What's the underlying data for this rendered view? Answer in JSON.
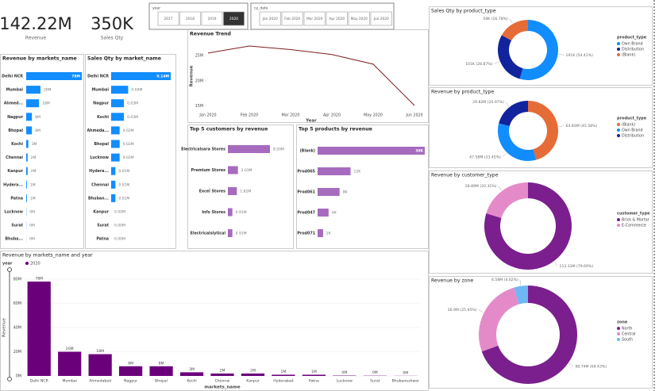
{
  "cards": [
    {
      "value": "142.22M",
      "label": "Revenue"
    },
    {
      "value": "350K",
      "label": "Sales Qty"
    }
  ],
  "slicers": [
    {
      "title": "year",
      "options": [
        "2017",
        "2018",
        "2019",
        "2020"
      ],
      "selected": 3
    },
    {
      "title": "cy_date",
      "options": [
        "Jan 2020",
        "Feb 2020",
        "Mar 2020",
        "Apr 2020",
        "May 2020",
        "Jun 2020"
      ],
      "selected": null
    }
  ],
  "chart_data": [
    {
      "type": "hbar",
      "title": "Revenue by markets_name",
      "color": "#118DFF",
      "categories": [
        "Delhi NCR",
        "Mumbai",
        "Ahmed...",
        "Nagpur",
        "Bhopal",
        "Kochi",
        "Chennai",
        "Kanpur",
        "Hydera...",
        "Patna",
        "Lucknow",
        "Surat",
        "Bhuba..."
      ],
      "values": [
        78,
        20,
        18,
        8,
        8,
        3,
        2,
        2,
        1,
        1,
        0.3,
        0.2,
        0.1
      ],
      "value_labels": [
        "78M",
        "20M",
        "18M",
        "8M",
        "8M",
        "3M",
        "2M",
        "2M",
        "1M",
        "1M",
        "0M",
        "0M",
        "0M"
      ]
    },
    {
      "type": "hbar",
      "title": "Sales Qty by market_name",
      "color": "#118DFF",
      "categories": [
        "Delhi NCR",
        "Mumbai",
        "Nagpur",
        "Kochi",
        "Ahmeda...",
        "Bhopal",
        "Lucknow",
        "Hydera...",
        "Chennai",
        "Bhuban...",
        "Kanpur",
        "Surat",
        "Patna"
      ],
      "values": [
        0.14,
        0.04,
        0.03,
        0.03,
        0.02,
        0.02,
        0.02,
        0.01,
        0.01,
        0.01,
        0.0,
        0.0,
        0.0
      ],
      "value_labels": [
        "0.14M",
        "0.04M",
        "0.03M",
        "0.03M",
        "0.02M",
        "0.02M",
        "0.02M",
        "0.01M",
        "0.01M",
        "0.01M",
        "0.00M",
        "0.00M",
        "0.00M"
      ]
    },
    {
      "type": "line",
      "title": "Revenue Trend",
      "color": "#7B1E1E",
      "x_label": "Year",
      "y_label": "Revenue",
      "categories": [
        "Jan 2020",
        "Feb 2020",
        "Mar 2020",
        "Apr 2020",
        "May 2020",
        "Jun 2020"
      ],
      "values": [
        25.5,
        26.9,
        26.2,
        25.2,
        23.3,
        15.1
      ],
      "ylim": [
        14,
        28
      ],
      "yticks": [
        {
          "value": 15,
          "label": "15M"
        },
        {
          "value": 20,
          "label": "20M"
        },
        {
          "value": 25,
          "label": "25M"
        }
      ]
    },
    {
      "type": "hbar",
      "title": "Top 5 customers by revenue",
      "color": "#A66BBE",
      "categories": [
        "Electricalsara Stores",
        "Premium Stores",
        "Excel Stores",
        "Info Stores",
        "Electricalslytical"
      ],
      "values": [
        8.5,
        2.03,
        1.82,
        0.91,
        0.91
      ],
      "value_labels": [
        "8.50M",
        "2.03M",
        "1.82M",
        "0.91M",
        "0.91M"
      ]
    },
    {
      "type": "hbar",
      "title": "Top 5 products by revenue",
      "color": "#A66BBE",
      "categories": [
        "(Blank)",
        "Prod065",
        "Prod061",
        "Prod047",
        "Prod071"
      ],
      "values": [
        39,
        12,
        8,
        4,
        2
      ],
      "value_labels": [
        "39K",
        "12K",
        "8K",
        "4K",
        "2K"
      ]
    },
    {
      "type": "bar",
      "title": "Revenue by markets_name and year",
      "legend_title": "year",
      "x_label": "markets_name",
      "y_label": "Revenue",
      "categories": [
        "Delhi NCR",
        "Mumbai",
        "Ahmedabad",
        "Nagpur",
        "Bhopal",
        "Kochi",
        "Chennai",
        "Kanpur",
        "Hyderabad",
        "Patna",
        "Lucknow",
        "Surat",
        "Bhubaneshwar"
      ],
      "series": [
        {
          "name": "2020",
          "color": "#6B007B",
          "values": [
            78,
            20,
            18,
            8,
            8,
            3,
            2,
            2,
            1,
            1,
            0.3,
            0.2,
            0.1
          ],
          "value_labels": [
            "78M",
            "20M",
            "18M",
            "8M",
            "8M",
            "3M",
            "2M",
            "2M",
            "1M",
            "1M",
            "0M",
            "0M",
            "0M"
          ]
        }
      ],
      "ylim": [
        0,
        80
      ],
      "yticks": [
        {
          "value": 0,
          "label": "0M"
        },
        {
          "value": 20,
          "label": "20M"
        },
        {
          "value": 40,
          "label": "40M"
        },
        {
          "value": 60,
          "label": "60M"
        },
        {
          "value": 80,
          "label": "80M"
        }
      ]
    },
    {
      "type": "donut",
      "title": "Sales Qty by product_type",
      "legend_title": "product_type",
      "categories": [
        "Own Brand",
        "Distribution",
        "(Blank)"
      ],
      "values": [
        191,
        101,
        59
      ],
      "value_labels": [
        "191K (54.41%)",
        "101K (28.87%)",
        "59K (16.78%)"
      ],
      "colors": [
        "#118DFF",
        "#12239E",
        "#E66C37"
      ]
    },
    {
      "type": "donut",
      "title": "Revenue by product_type",
      "legend_title": "product_type",
      "categories": [
        "(Blank)",
        "Own Brand",
        "Distribution"
      ],
      "values": [
        64.83,
        47.58,
        29.82
      ],
      "value_labels": [
        "64.83M (45.58%)",
        "47.58M (33.45%)",
        "29.82M (20.97%)"
      ],
      "colors": [
        "#E66C37",
        "#118DFF",
        "#12239E"
      ]
    },
    {
      "type": "donut",
      "title": "Revenue by customer_type",
      "legend_title": "customer_type",
      "categories": [
        "Brick & Mortar",
        "E-Commerce"
      ],
      "values": [
        113.33,
        28.89
      ],
      "value_labels": [
        "113.33M (79.69%)",
        "28.89M (20.31%)"
      ],
      "colors": [
        "#7B1F8E",
        "#E58AC9"
      ]
    },
    {
      "type": "donut",
      "title": "Revenue by zone",
      "legend_title": "zone",
      "categories": [
        "North",
        "Central",
        "South"
      ],
      "values": [
        98.74,
        36.9,
        6.58
      ],
      "value_labels": [
        "98.74M (69.43%)",
        "36.9M (25.95%)",
        "6.58M (4.62%)"
      ],
      "colors": [
        "#7B1F8E",
        "#E58AC9",
        "#6FB7F5"
      ]
    }
  ]
}
